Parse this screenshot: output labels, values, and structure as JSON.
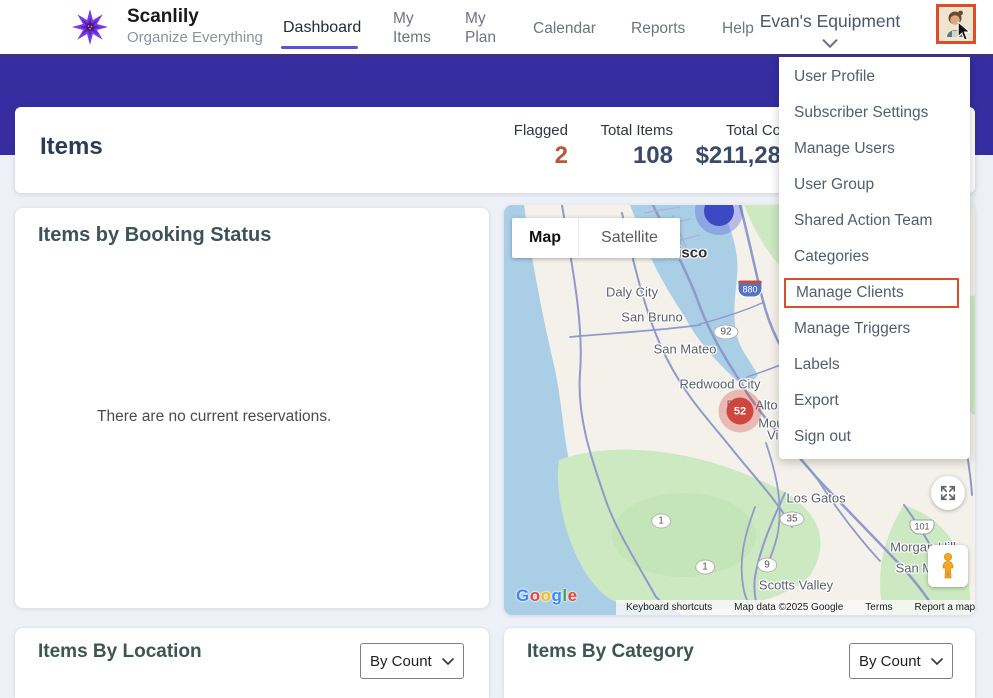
{
  "brand": {
    "name": "Scanlily",
    "tagline": "Organize Everything"
  },
  "nav": {
    "items": [
      {
        "label": "Dashboard"
      },
      {
        "label": "My Items"
      },
      {
        "label": "My Plan"
      },
      {
        "label": "Calendar"
      },
      {
        "label": "Reports"
      },
      {
        "label": "Help"
      }
    ],
    "account_label": "Evan's Equipment"
  },
  "user_menu": {
    "items": [
      "User Profile",
      "Subscriber Settings",
      "Manage Users",
      "User Group",
      "Shared Action Team",
      "Categories",
      "Manage Clients",
      "Manage Triggers",
      "Labels",
      "Export",
      "Sign out"
    ],
    "highlighted_item": "Manage Clients"
  },
  "stats": {
    "title": "Items",
    "flagged": {
      "label": "Flagged",
      "value": "2"
    },
    "total_items": {
      "label": "Total Items",
      "value": "108"
    },
    "total_cost": {
      "label": "Total Co",
      "value": "$211,28"
    }
  },
  "booking_panel": {
    "title": "Items by Booking Status",
    "empty_message": "There are no current reservations."
  },
  "map_panel": {
    "controls": {
      "map": "Map",
      "satellite": "Satellite"
    },
    "city_labels": [
      "San Francisco",
      "Daly City",
      "San Bruno",
      "San Mateo",
      "Redwood City",
      "Palo Alto",
      "Mountain",
      "View",
      "Los Gatos",
      "Morgan Hill",
      "San Martin",
      "Scotts Valley"
    ],
    "route_shields": [
      "92",
      "880",
      "1",
      "1",
      "9",
      "35",
      "101"
    ],
    "clusters": [
      {
        "count": "52"
      },
      {
        "count": ""
      }
    ],
    "logo": {
      "text": "Google",
      "letter_colors": [
        "#4285F4",
        "#EA4335",
        "#FBBC05",
        "#4285F4",
        "#34A853",
        "#EA4335"
      ]
    },
    "attribution": {
      "keyboard": "Keyboard shortcuts",
      "map_data": "Map data ©2025 Google",
      "terms": "Terms",
      "report": "Report a map error"
    }
  },
  "location_panel": {
    "title": "Items By Location",
    "sort": "By Count"
  },
  "category_panel": {
    "title": "Items By Category",
    "sort": "By Count"
  },
  "colors": {
    "accent_purple": "#362DA0",
    "active_tab_underline": "#5A51D6",
    "highlight_orange": "#DC4E28",
    "flagged_red": "#B9573E",
    "stat_navy": "#3B4A68"
  }
}
